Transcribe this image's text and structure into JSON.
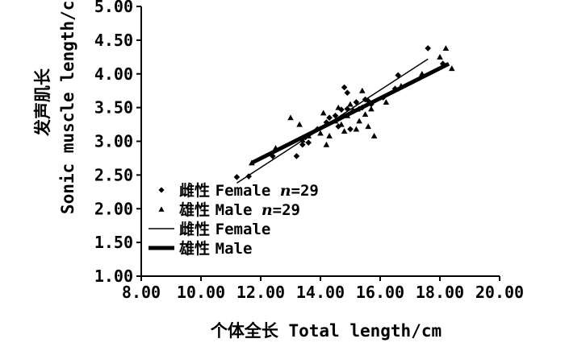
{
  "chart_data": {
    "type": "scatter",
    "title": "",
    "xlabel": "个体全长 Total length/cm",
    "ylabel_cn": "发声肌长",
    "ylabel_en": "Sonic muscle length/cm",
    "xlim": [
      8.0,
      20.0
    ],
    "ylim": [
      1.0,
      5.0
    ],
    "x_ticks": [
      "8.00",
      "10.00",
      "12.00",
      "14.00",
      "16.00",
      "18.00",
      "20.00"
    ],
    "x_tick_values": [
      8,
      10,
      12,
      14,
      16,
      18,
      20
    ],
    "y_ticks": [
      "1.00",
      "1.50",
      "2.00",
      "2.50",
      "3.00",
      "3.50",
      "4.00",
      "4.50",
      "5.00"
    ],
    "y_tick_values": [
      1,
      1.5,
      2,
      2.5,
      3,
      3.5,
      4,
      4.5,
      5
    ],
    "grid": false,
    "legend": {
      "position": "bottom-left",
      "entries": [
        {
          "label_cn": "雌性",
          "label_en": "Female",
          "n_label": "n",
          "n_value": "=29",
          "marker": "diamond"
        },
        {
          "label_cn": "雄性",
          "label_en": "Male",
          "n_label": "n",
          "n_value": "=29",
          "marker": "triangle"
        },
        {
          "label_cn": "雌性",
          "label_en": "Female",
          "marker": "thin-line"
        },
        {
          "label_cn": "雄性",
          "label_en": "Male",
          "marker": "thick-line"
        }
      ]
    },
    "series": [
      {
        "name": "雌性 Female",
        "marker": "diamond",
        "points": [
          [
            11.2,
            2.47
          ],
          [
            11.6,
            2.48
          ],
          [
            12.4,
            2.78
          ],
          [
            13.2,
            2.78
          ],
          [
            13.4,
            2.95
          ],
          [
            13.5,
            3.06
          ],
          [
            13.6,
            2.98
          ],
          [
            13.9,
            3.18
          ],
          [
            14.2,
            3.28
          ],
          [
            14.3,
            3.35
          ],
          [
            14.5,
            3.38
          ],
          [
            14.6,
            3.22
          ],
          [
            14.7,
            3.47
          ],
          [
            14.8,
            3.8
          ],
          [
            14.9,
            3.72
          ],
          [
            14.9,
            3.48
          ],
          [
            15.0,
            3.18
          ],
          [
            15.1,
            3.45
          ],
          [
            15.2,
            3.58
          ],
          [
            15.3,
            3.48
          ],
          [
            15.4,
            3.5
          ],
          [
            15.5,
            3.62
          ],
          [
            15.6,
            3.6
          ],
          [
            15.7,
            3.55
          ],
          [
            16.1,
            3.65
          ],
          [
            16.5,
            3.78
          ],
          [
            16.6,
            3.98
          ],
          [
            17.6,
            4.38
          ],
          [
            18.1,
            4.15
          ]
        ]
      },
      {
        "name": "雄性 Male",
        "marker": "triangle",
        "points": [
          [
            11.7,
            2.68
          ],
          [
            12.5,
            2.9
          ],
          [
            13.0,
            3.35
          ],
          [
            13.3,
            3.25
          ],
          [
            13.4,
            3.02
          ],
          [
            13.6,
            3.08
          ],
          [
            14.0,
            3.12
          ],
          [
            14.1,
            3.42
          ],
          [
            14.2,
            2.95
          ],
          [
            14.3,
            3.08
          ],
          [
            14.5,
            3.3
          ],
          [
            14.6,
            3.5
          ],
          [
            14.7,
            3.25
          ],
          [
            14.8,
            3.15
          ],
          [
            14.9,
            3.38
          ],
          [
            15.0,
            3.55
          ],
          [
            15.2,
            3.18
          ],
          [
            15.3,
            3.3
          ],
          [
            15.4,
            3.75
          ],
          [
            15.5,
            3.4
          ],
          [
            15.6,
            3.22
          ],
          [
            15.7,
            3.48
          ],
          [
            15.8,
            3.08
          ],
          [
            16.2,
            3.58
          ],
          [
            16.7,
            3.82
          ],
          [
            17.4,
            4.0
          ],
          [
            18.0,
            4.25
          ],
          [
            18.2,
            4.38
          ],
          [
            18.4,
            4.08
          ]
        ]
      }
    ],
    "fit_lines": [
      {
        "name": "雌性 Female",
        "style": "thin",
        "x": [
          11.2,
          17.6
        ],
        "y": [
          2.38,
          4.22
        ]
      },
      {
        "name": "雄性 Male",
        "style": "thick",
        "x": [
          11.7,
          18.3
        ],
        "y": [
          2.68,
          4.15
        ]
      }
    ]
  }
}
